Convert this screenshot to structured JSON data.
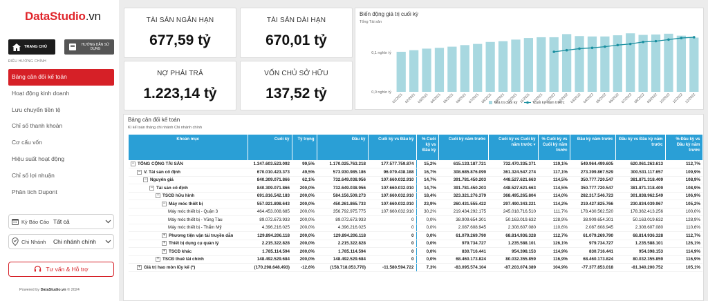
{
  "brand": {
    "name_bold": "DataStudio",
    "name_suffix": ".vn"
  },
  "sidebar": {
    "home_label": "TRANG CHỦ",
    "guide_label": "HƯỚNG DẪN SỬ DỤNG",
    "nav_header": "ĐIỀU HƯỚNG CHÍNH",
    "items": [
      {
        "label": "Bảng cân đối kế toán",
        "active": true
      },
      {
        "label": "Hoạt động kinh doanh",
        "active": false
      },
      {
        "label": "Lưu chuyển tiền tệ",
        "active": false
      },
      {
        "label": "Chỉ số thanh khoản",
        "active": false
      },
      {
        "label": "Cơ cấu vốn",
        "active": false
      },
      {
        "label": "Hiệu suất hoạt động",
        "active": false
      },
      {
        "label": "Chỉ số lợi nhuận",
        "active": false
      },
      {
        "label": "Phân tích Dupont",
        "active": false
      }
    ],
    "filters": [
      {
        "label": "Kỳ Báo Cáo",
        "value": "Tất cả",
        "icon": "calendar-icon"
      },
      {
        "label": "Chi Nhánh",
        "value": "Chi nhánh chính",
        "icon": "location-check-icon"
      }
    ],
    "support_label": "Tư vấn & Hỗ trợ",
    "powered_prefix": "Powered by ",
    "powered_brand": "DataStudio.vn",
    "powered_suffix": " © 2024"
  },
  "kpis": [
    {
      "label": "TÀI SẢN NGẮN HẠN",
      "value": "677,59 tỷ"
    },
    {
      "label": "TÀI SẢN DÀI HẠN",
      "value": "670,01 tỷ"
    },
    {
      "label": "NỢ PHẢI TRẢ",
      "value": "1.223,14 tỷ"
    },
    {
      "label": "VỐN CHỦ SỞ HỮU",
      "value": "137,52 tỷ"
    }
  ],
  "chart_data": {
    "type": "bar",
    "title": "Biến động giá trị cuối kỳ",
    "subtitle": "Tổng Tài sản",
    "y_tick_labels": [
      "0,1 nghìn tỷ",
      "0,0 nghìn tỷ"
    ],
    "y_ticks": [
      100,
      0
    ],
    "ylim": [
      0,
      160
    ],
    "categories": [
      "01/2021",
      "02/2021",
      "03/2021",
      "04/2021",
      "05/2021",
      "06/2021",
      "07/2021",
      "08/2021",
      "09/2021",
      "10/2021",
      "11/2021",
      "12/2021",
      "01/2022",
      "02/2022",
      "03/2022",
      "04/2022",
      "05/2022",
      "06/2022",
      "07/2022",
      "08/2022",
      "09/2022",
      "10/2022",
      "11/2022",
      "12/2022"
    ],
    "series": [
      {
        "name": "Giá trị cuối kỳ",
        "kind": "bar",
        "color": "#a8d8e0",
        "values": [
          102,
          106,
          110,
          112,
          115,
          119,
          122,
          127,
          129,
          133,
          137,
          139,
          139,
          147,
          142,
          141,
          141,
          144,
          149,
          145,
          146,
          148,
          143,
          138
        ]
      },
      {
        "name": "Cuối kỳ năm trước",
        "kind": "line",
        "color": "#1a8fa0",
        "values": [
          null,
          null,
          null,
          null,
          null,
          null,
          null,
          null,
          null,
          null,
          null,
          null,
          102,
          106,
          110,
          112,
          115,
          119,
          122,
          127,
          129,
          133,
          137,
          139
        ]
      }
    ],
    "legend_position": "bottom-center",
    "grid": false
  },
  "table": {
    "title": "Bảng cân đối kế toán",
    "subtitle": "Kì kế toán tháng  chi nhánh Chi nhánh chính",
    "columns": [
      "Khoản mục",
      "Cuối kỳ",
      "Tỷ trọng",
      "Đầu kỳ",
      "Cuối kỳ vs Đầu kỳ",
      "% Cuối kỳ vs Đầu kỳ",
      "Cuối kỳ năm trước",
      "Cuối kỳ vs Cuối kỳ năm trước",
      "% Cuối kỳ vs Cuối kỳ năm trước",
      "Đầu kỳ năm trước",
      "Đầu kỳ vs Đầu kỳ năm trước",
      "% Đầu kỳ vs Đầu kỳ năm trước"
    ],
    "rows": [
      {
        "level": 0,
        "exp": "⊟",
        "bold": true,
        "cells": [
          "TỔNG CỘNG TÀI SẢN",
          "1.347.603.523.092",
          "99,5%",
          "1.170.025.763.218",
          "177.577.759.874",
          "15,2%",
          "615.133.187.721",
          "732.470.335.371",
          "119,1%",
          "549.964.499.605",
          "620.061.263.613",
          "112,7%"
        ]
      },
      {
        "level": 1,
        "exp": "⊟",
        "bold": true,
        "cells": [
          "V. Tài sản cố định",
          "670.010.423.373",
          "49,5%",
          "573.930.985.186",
          "96.079.438.188",
          "16,7%",
          "308.685.876.099",
          "361.324.547.274",
          "117,1%",
          "273.399.867.529",
          "300.531.117.657",
          "109,9%"
        ]
      },
      {
        "level": 2,
        "exp": "⊟",
        "bold": true,
        "cells": [
          "Nguyên giá",
          "840.309.071.866",
          "62,1%",
          "732.649.038.956",
          "107.660.032.910",
          "14,7%",
          "391.781.450.203",
          "448.527.621.663",
          "114,5%",
          "350.777.720.547",
          "381.871.318.409",
          "108,9%"
        ]
      },
      {
        "level": 3,
        "exp": "⊟",
        "bold": true,
        "cells": [
          "Tài sản cố định",
          "840.309.071.866",
          "200,0%",
          "732.649.038.956",
          "107.660.032.910",
          "14,7%",
          "391.781.450.203",
          "448.527.621.663",
          "114,5%",
          "350.777.720.547",
          "381.871.318.409",
          "108,9%"
        ]
      },
      {
        "level": 4,
        "exp": "⊟",
        "bold": true,
        "cells": [
          "TSCĐ hữu hình",
          "691.816.542.183",
          "200,0%",
          "584.156.509.273",
          "107.660.032.910",
          "18,4%",
          "323.321.276.379",
          "368.495.265.804",
          "114,0%",
          "282.317.546.723",
          "301.838.962.549",
          "106,9%"
        ]
      },
      {
        "level": 5,
        "exp": "⊟",
        "bold": true,
        "cells": [
          "Máy móc thiết bị",
          "557.921.898.643",
          "200,0%",
          "450.261.865.733",
          "107.660.032.910",
          "23,9%",
          "260.431.555.422",
          "297.490.343.221",
          "114,2%",
          "219.427.825.766",
          "230.834.039.967",
          "105,2%"
        ]
      },
      {
        "level": 6,
        "exp": "",
        "bold": false,
        "cells": [
          "Máy móc thiết bị - Quận 3",
          "464.453.008.685",
          "200,0%",
          "356.792.975.775",
          "107.660.032.910",
          "30,2%",
          "219.434.292.175",
          "245.018.716.510",
          "111,7%",
          "178.430.562.520",
          "178.362.413.256",
          "100,0%"
        ]
      },
      {
        "level": 6,
        "exp": "",
        "bold": false,
        "cells": [
          "Máy móc thiết bị - Vũng Tàu",
          "89.072.673.933",
          "200,0%",
          "89.072.673.933",
          "0",
          "0,0%",
          "38.909.654.301",
          "50.163.019.632",
          "128,9%",
          "38.909.654.301",
          "50.163.019.632",
          "128,9%"
        ]
      },
      {
        "level": 6,
        "exp": "",
        "bold": false,
        "cells": [
          "Máy móc thiết bị - Thẩm Mỹ",
          "4.396.216.025",
          "200,0%",
          "4.396.216.025",
          "0",
          "0,0%",
          "2.087.608.945",
          "2.308.607.080",
          "110,6%",
          "2.087.608.945",
          "2.308.607.080",
          "110,6%"
        ]
      },
      {
        "level": 5,
        "exp": "⊞",
        "bold": true,
        "cells": [
          "Phương tiện vận tải truyền dẫn",
          "129.894.206.118",
          "200,0%",
          "129.894.206.118",
          "0",
          "0,0%",
          "61.079.269.790",
          "68.814.936.328",
          "112,7%",
          "61.079.269.790",
          "68.814.936.328",
          "112,7%"
        ]
      },
      {
        "level": 5,
        "exp": "⊞",
        "bold": true,
        "cells": [
          "Thiết bị dụng cụ quản lý",
          "2.215.322.828",
          "200,0%",
          "2.215.322.828",
          "0",
          "0,0%",
          "979.734.727",
          "1.235.588.101",
          "126,1%",
          "979.734.727",
          "1.235.588.101",
          "126,1%"
        ]
      },
      {
        "level": 5,
        "exp": "⊞",
        "bold": true,
        "cells": [
          "TSCĐ khác",
          "1.785.114.594",
          "200,0%",
          "1.785.114.594",
          "0",
          "0,0%",
          "830.716.441",
          "954.398.153",
          "114,9%",
          "830.716.441",
          "954.398.153",
          "114,9%"
        ]
      },
      {
        "level": 4,
        "exp": "⊞",
        "bold": true,
        "cells": [
          "TSCĐ thuê tài chính",
          "148.492.529.684",
          "200,0%",
          "148.492.529.684",
          "0",
          "0,0%",
          "68.460.173.824",
          "80.032.355.859",
          "116,9%",
          "68.460.173.824",
          "80.032.355.859",
          "116,9%"
        ]
      },
      {
        "level": 1,
        "exp": "⊞",
        "bold": true,
        "cells": [
          "Giá trị hao mòn lũy kế (*)",
          "(170.298.648.493)",
          "-12,6%",
          "(158.718.053.770)",
          "-11.580.594.722",
          "7,3%",
          "-83.095.574.104",
          "-87.203.074.389",
          "104,9%",
          "-77.377.853.018",
          "-81.340.200.752",
          "105,1%"
        ]
      }
    ]
  }
}
